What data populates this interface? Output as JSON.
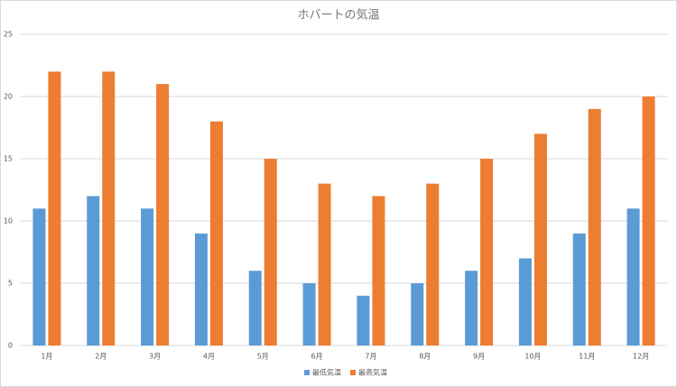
{
  "chart_data": {
    "type": "bar",
    "title": "ホバートの気温",
    "categories": [
      "1月",
      "2月",
      "3月",
      "4月",
      "5月",
      "6月",
      "7月",
      "8月",
      "9月",
      "10月",
      "11月",
      "12月"
    ],
    "series": [
      {
        "name": "最低気温",
        "color": "#5b9bd5",
        "values": [
          11,
          12,
          11,
          9,
          6,
          5,
          4,
          5,
          6,
          7,
          9,
          11
        ]
      },
      {
        "name": "最高気温",
        "color": "#ed7d31",
        "values": [
          22,
          22,
          21,
          18,
          15,
          13,
          12,
          13,
          15,
          17,
          19,
          20
        ]
      }
    ],
    "ylim": [
      0,
      25
    ],
    "yticks": [
      0,
      5,
      10,
      15,
      20,
      25
    ],
    "grid": true,
    "legend": "bottom"
  }
}
